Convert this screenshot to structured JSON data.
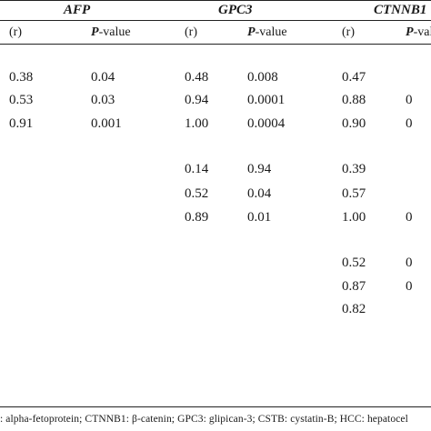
{
  "header": {
    "genes": [
      "AFP",
      "GPC3",
      "CTNNB1"
    ],
    "sub_r": "(r)",
    "sub_p_italic": "P",
    "sub_p_rest": "-value"
  },
  "groups": [
    {
      "rows": [
        {
          "afp_r": "0.38",
          "afp_p": "0.04",
          "gpc3_r": "0.48",
          "gpc3_p": "0.008",
          "ctnnb1_r": "0.47",
          "ctnnb1_p": ""
        },
        {
          "afp_r": "0.53",
          "afp_p": "0.03",
          "gpc3_r": "0.94",
          "gpc3_p": "0.0001",
          "ctnnb1_r": "0.88",
          "ctnnb1_p": "0"
        },
        {
          "afp_r": "0.91",
          "afp_p": "0.001",
          "gpc3_r": "1.00",
          "gpc3_p": "0.0004",
          "ctnnb1_r": "0.90",
          "ctnnb1_p": "0"
        }
      ]
    },
    {
      "rows": [
        {
          "afp_r": "",
          "afp_p": "",
          "gpc3_r": "0.14",
          "gpc3_p": "0.94",
          "ctnnb1_r": "0.39",
          "ctnnb1_p": ""
        },
        {
          "afp_r": "",
          "afp_p": "",
          "gpc3_r": "0.52",
          "gpc3_p": "0.04",
          "ctnnb1_r": "0.57",
          "ctnnb1_p": ""
        },
        {
          "afp_r": "",
          "afp_p": "",
          "gpc3_r": "0.89",
          "gpc3_p": "0.01",
          "ctnnb1_r": "1.00",
          "ctnnb1_p": "0"
        }
      ]
    },
    {
      "rows": [
        {
          "afp_r": "",
          "afp_p": "",
          "gpc3_r": "",
          "gpc3_p": "",
          "ctnnb1_r": "0.52",
          "ctnnb1_p": "0"
        },
        {
          "afp_r": "",
          "afp_p": "",
          "gpc3_r": "",
          "gpc3_p": "",
          "ctnnb1_r": "0.87",
          "ctnnb1_p": "0"
        },
        {
          "afp_r": "",
          "afp_p": "",
          "gpc3_r": "",
          "gpc3_p": "",
          "ctnnb1_r": "0.82",
          "ctnnb1_p": ""
        }
      ]
    }
  ],
  "footnote": ": alpha-fetoprotein; CTNNB1: β-catenin; GPC3: glipican-3; CSTB: cystatin-B; HCC: hepatocel"
}
